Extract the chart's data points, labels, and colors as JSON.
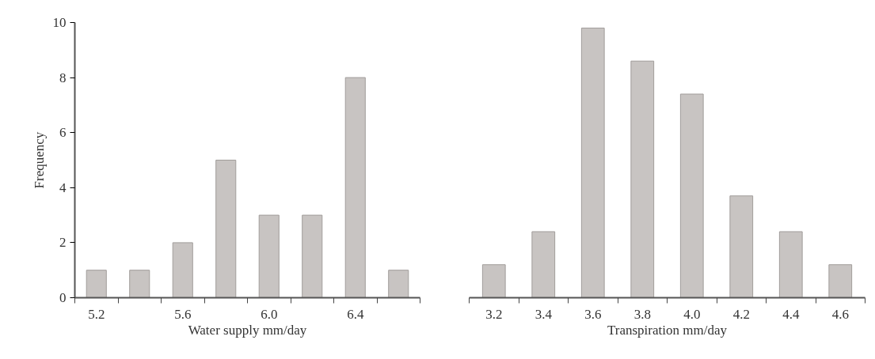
{
  "chart_data": [
    {
      "type": "bar",
      "categories": [
        "5.2",
        null,
        "5.6",
        null,
        "6.0",
        null,
        "6.4",
        null
      ],
      "values": [
        1,
        1,
        2,
        5,
        3,
        3,
        8,
        1
      ],
      "color": "#c8c4c2",
      "xlabel": "Water supply mm/day",
      "ylabel": "Frequency",
      "ylim": [
        0,
        10
      ],
      "yticks": [
        0,
        2,
        4,
        6,
        8,
        10
      ],
      "grid": false
    },
    {
      "type": "bar",
      "categories": [
        "3.2",
        "3.4",
        "3.6",
        "3.8",
        "4.0",
        "4.2",
        "4.4",
        "4.6"
      ],
      "values": [
        1.2,
        2.4,
        9.8,
        8.6,
        7.4,
        3.7,
        2.4,
        1.2
      ],
      "color": "#c8c4c2",
      "xlabel": "Transpiration mm/day",
      "ylim": [
        0,
        10
      ],
      "yticks": [
        0,
        2,
        4,
        6,
        8,
        10
      ],
      "tick_labels": "x",
      "grid": false
    }
  ]
}
